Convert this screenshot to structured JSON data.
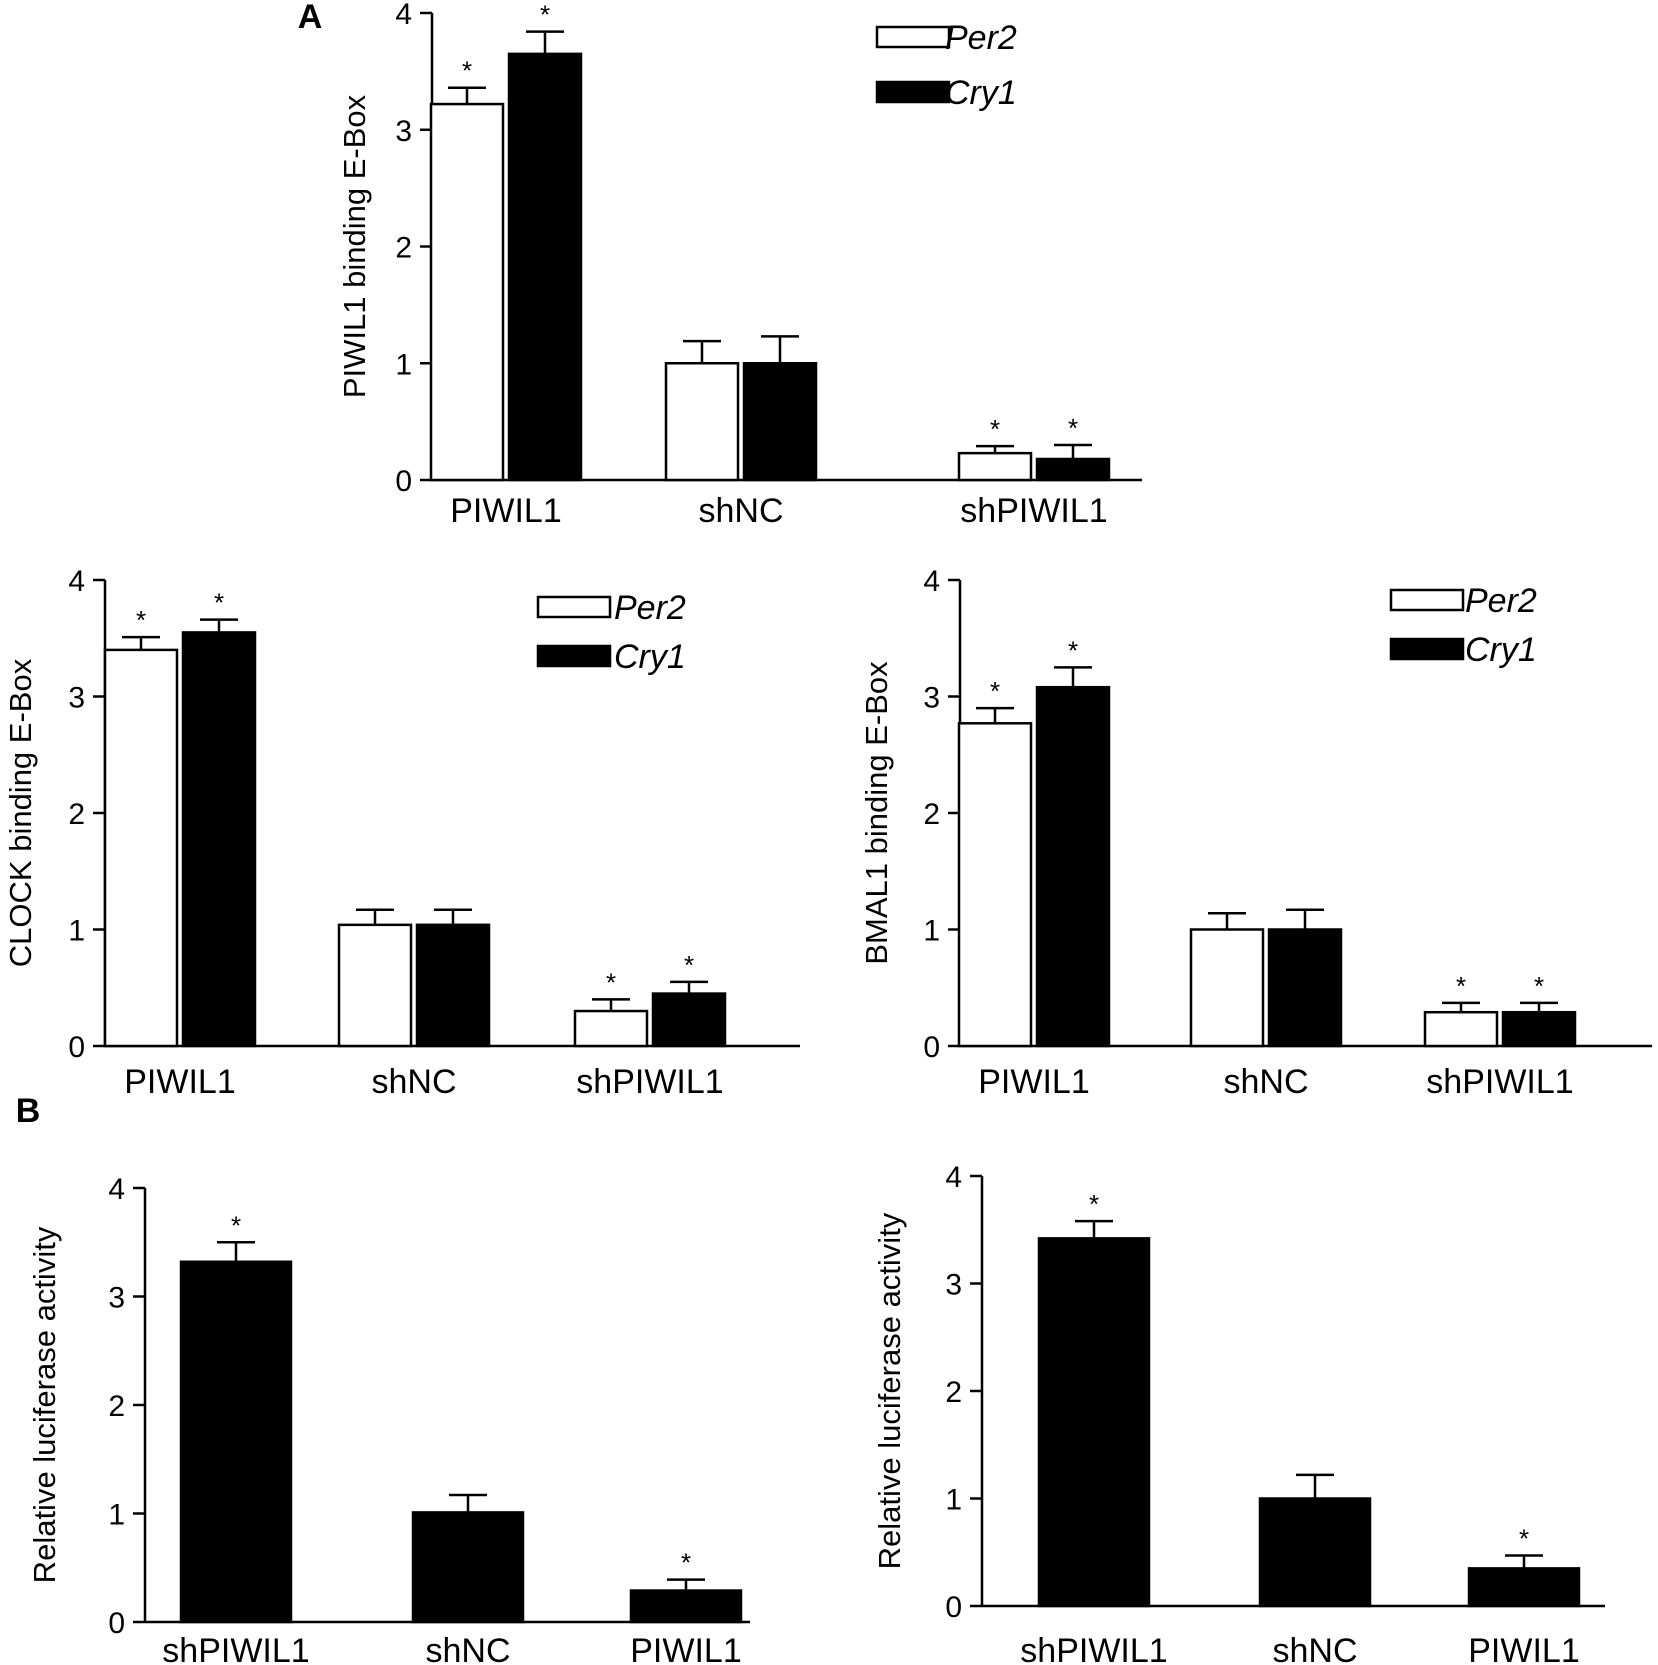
{
  "panel_labels": [
    "A",
    "B"
  ],
  "legend": {
    "per2": "Per2",
    "cry1": "Cry1"
  },
  "colors": {
    "per2_fill": "#ffffff",
    "cry1_fill": "#000000",
    "axis": "#000000"
  },
  "chart_data": [
    {
      "type": "bar",
      "ylabel": "PIWIL1 binding E-Box",
      "categories": [
        "PIWIL1",
        "shNC",
        "shPIWIL1"
      ],
      "ylim": [
        0,
        4
      ],
      "yticks": [
        "0",
        "1",
        "2",
        "3",
        "4"
      ],
      "legend_position": "top-right",
      "series": [
        {
          "name": "Per2",
          "values": [
            3.22,
            1.0,
            0.23
          ],
          "errors": [
            0.14,
            0.19,
            0.06
          ],
          "significance": [
            "*",
            "",
            "*"
          ]
        },
        {
          "name": "Cry1",
          "values": [
            3.65,
            1.0,
            0.18
          ],
          "errors": [
            0.19,
            0.23,
            0.12
          ],
          "significance": [
            "*",
            "",
            "*"
          ]
        }
      ]
    },
    {
      "type": "bar",
      "ylabel": "CLOCK binding E-Box",
      "categories": [
        "PIWIL1",
        "shNC",
        "shPIWIL1"
      ],
      "ylim": [
        0,
        4
      ],
      "yticks": [
        "0",
        "1",
        "2",
        "3",
        "4"
      ],
      "legend_position": "top-right",
      "series": [
        {
          "name": "Per2",
          "values": [
            3.4,
            1.04,
            0.3
          ],
          "errors": [
            0.11,
            0.13,
            0.1
          ],
          "significance": [
            "*",
            "",
            "*"
          ]
        },
        {
          "name": "Cry1",
          "values": [
            3.55,
            1.04,
            0.45
          ],
          "errors": [
            0.11,
            0.13,
            0.1
          ],
          "significance": [
            "*",
            "",
            "*"
          ]
        }
      ]
    },
    {
      "type": "bar",
      "ylabel": "BMAL1 binding E-Box",
      "categories": [
        "PIWIL1",
        "shNC",
        "shPIWIL1"
      ],
      "ylim": [
        0,
        4
      ],
      "yticks": [
        "0",
        "1",
        "2",
        "3",
        "4"
      ],
      "legend_position": "top-right",
      "series": [
        {
          "name": "Per2",
          "values": [
            2.77,
            1.0,
            0.29
          ],
          "errors": [
            0.13,
            0.14,
            0.08
          ],
          "significance": [
            "*",
            "",
            "*"
          ]
        },
        {
          "name": "Cry1",
          "values": [
            3.08,
            1.0,
            0.29
          ],
          "errors": [
            0.17,
            0.17,
            0.08
          ],
          "significance": [
            "*",
            "",
            "*"
          ]
        }
      ]
    },
    {
      "type": "bar",
      "ylabel": "Relative luciferase activity",
      "categories": [
        "shPIWIL1",
        "shNC",
        "PIWIL1"
      ],
      "ylim": [
        0,
        4
      ],
      "yticks": [
        "0",
        "1",
        "2",
        "3",
        "4"
      ],
      "series": [
        {
          "values": [
            3.32,
            1.01,
            0.29
          ],
          "errors": [
            0.18,
            0.16,
            0.1
          ],
          "significance": [
            "*",
            "",
            "*"
          ]
        }
      ]
    },
    {
      "type": "bar",
      "ylabel": "Relative luciferase activity",
      "categories": [
        "shPIWIL1",
        "shNC",
        "PIWIL1"
      ],
      "ylim": [
        0,
        4
      ],
      "yticks": [
        "0",
        "1",
        "2",
        "3",
        "4"
      ],
      "series": [
        {
          "values": [
            3.42,
            1.0,
            0.35
          ],
          "errors": [
            0.16,
            0.22,
            0.12
          ],
          "significance": [
            "*",
            "",
            "*"
          ]
        }
      ]
    }
  ]
}
